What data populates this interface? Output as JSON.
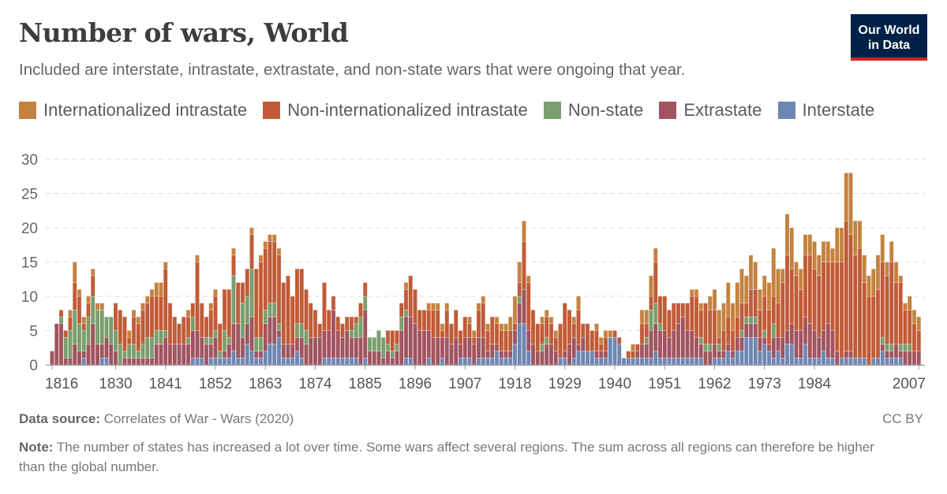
{
  "header": {
    "title": "Number of wars, World",
    "subtitle": "Included are interstate, intrastate, extrastate, and non-state wars that were ongoing that year.",
    "logo_line1": "Our World",
    "logo_line2": "in Data"
  },
  "footer": {
    "source_label": "Data source:",
    "source_text": "Correlates of War - Wars (2020)",
    "license": "CC BY",
    "note_label": "Note:",
    "note_text": "The number of states has increased a lot over time. Some wars affect several regions. The sum across all regions can therefore be higher than the global number."
  },
  "chart_data": {
    "type": "bar",
    "stacked": true,
    "title": "Number of wars, World",
    "xlabel": "",
    "ylabel": "",
    "ylim": [
      0,
      30
    ],
    "yticks": [
      "0",
      "5",
      "10",
      "15",
      "20",
      "25",
      "30"
    ],
    "xticks": [
      "1816",
      "1830",
      "1841",
      "1852",
      "1863",
      "1874",
      "1885",
      "1896",
      "1907",
      "1918",
      "1929",
      "1940",
      "1951",
      "1962",
      "1973",
      "1984",
      "2007"
    ],
    "grid": "horizontal-dashed",
    "legend_position": "top",
    "legend": [
      {
        "name": "Internationalized intrastate",
        "color": "#C4823F"
      },
      {
        "name": "Non-internationalized intrastate",
        "color": "#C15B37"
      },
      {
        "name": "Non-state",
        "color": "#7A9E6D"
      },
      {
        "name": "Extrastate",
        "color": "#A1545F"
      },
      {
        "name": "Interstate",
        "color": "#6D87B3"
      }
    ],
    "stack_order": [
      "Interstate",
      "Extrastate",
      "Non-state",
      "Non-internationalized intrastate",
      "Internationalized intrastate"
    ],
    "stack_colors": [
      "#6D87B3",
      "#A1545F",
      "#7A9E6D",
      "#C15B37",
      "#C4823F"
    ],
    "first_year": 1816,
    "last_year": 2007,
    "rows": [
      [
        0,
        2,
        0,
        0,
        0
      ],
      [
        0,
        6,
        0,
        0,
        0
      ],
      [
        0,
        6,
        1,
        1,
        0
      ],
      [
        0,
        1,
        3,
        1,
        0
      ],
      [
        0,
        1,
        4,
        2,
        1
      ],
      [
        0,
        3,
        5,
        4,
        3
      ],
      [
        0,
        2,
        4,
        4,
        1
      ],
      [
        1,
        1,
        3,
        1,
        1
      ],
      [
        0,
        3,
        4,
        2,
        1
      ],
      [
        0,
        6,
        4,
        3,
        1
      ],
      [
        0,
        3,
        5,
        0,
        1
      ],
      [
        1,
        2,
        5,
        0,
        1
      ],
      [
        1,
        3,
        3,
        0,
        0
      ],
      [
        0,
        3,
        4,
        0,
        0
      ],
      [
        0,
        2,
        3,
        4,
        0
      ],
      [
        0,
        0,
        3,
        5,
        0
      ],
      [
        0,
        1,
        1,
        5,
        0
      ],
      [
        0,
        1,
        2,
        1,
        1
      ],
      [
        0,
        1,
        2,
        4,
        1
      ],
      [
        0,
        1,
        1,
        4,
        1
      ],
      [
        0,
        1,
        2,
        5,
        1
      ],
      [
        0,
        1,
        3,
        5,
        1
      ],
      [
        0,
        1,
        3,
        6,
        1
      ],
      [
        0,
        3,
        2,
        5,
        2
      ],
      [
        0,
        3,
        2,
        5,
        2
      ],
      [
        0,
        4,
        1,
        9,
        1
      ],
      [
        0,
        3,
        0,
        6,
        0
      ],
      [
        0,
        3,
        0,
        4,
        0
      ],
      [
        0,
        3,
        0,
        3,
        0
      ],
      [
        0,
        3,
        0,
        4,
        0
      ],
      [
        0,
        3,
        1,
        3,
        1
      ],
      [
        1,
        4,
        2,
        2,
        0
      ],
      [
        1,
        4,
        0,
        10,
        1
      ],
      [
        1,
        3,
        0,
        5,
        0
      ],
      [
        0,
        3,
        1,
        3,
        0
      ],
      [
        1,
        2,
        1,
        4,
        1
      ],
      [
        1,
        3,
        1,
        5,
        1
      ],
      [
        1,
        0,
        1,
        4,
        0
      ],
      [
        1,
        1,
        3,
        6,
        0
      ],
      [
        1,
        2,
        1,
        7,
        0
      ],
      [
        2,
        4,
        7,
        3,
        1
      ],
      [
        1,
        5,
        0,
        6,
        0
      ],
      [
        1,
        3,
        5,
        3,
        0
      ],
      [
        3,
        3,
        4,
        4,
        0
      ],
      [
        2,
        5,
        7,
        5,
        1
      ],
      [
        1,
        1,
        2,
        10,
        0
      ],
      [
        1,
        1,
        2,
        11,
        1
      ],
      [
        2,
        4,
        2,
        9,
        1
      ],
      [
        3,
        4,
        2,
        9,
        1
      ],
      [
        3,
        4,
        2,
        9,
        1
      ],
      [
        4,
        1,
        1,
        10,
        1
      ],
      [
        1,
        2,
        0,
        9,
        0
      ],
      [
        1,
        2,
        0,
        10,
        0
      ],
      [
        1,
        2,
        0,
        7,
        0
      ],
      [
        2,
        2,
        2,
        8,
        0
      ],
      [
        1,
        3,
        2,
        8,
        0
      ],
      [
        0,
        3,
        2,
        6,
        0
      ],
      [
        0,
        4,
        0,
        5,
        0
      ],
      [
        0,
        4,
        0,
        4,
        0
      ],
      [
        0,
        4,
        0,
        2,
        0
      ],
      [
        1,
        4,
        0,
        7,
        0
      ],
      [
        1,
        4,
        0,
        3,
        0
      ],
      [
        1,
        7,
        0,
        2,
        0
      ],
      [
        1,
        4,
        0,
        2,
        0
      ],
      [
        1,
        3,
        0,
        2,
        0
      ],
      [
        1,
        4,
        0,
        2,
        0
      ],
      [
        1,
        3,
        1,
        2,
        0
      ],
      [
        1,
        3,
        2,
        1,
        0
      ],
      [
        0,
        4,
        3,
        2,
        0
      ],
      [
        1,
        7,
        2,
        2,
        0
      ],
      [
        0,
        2,
        2,
        0,
        0
      ],
      [
        0,
        2,
        2,
        0,
        0
      ],
      [
        0,
        2,
        3,
        0,
        0
      ],
      [
        0,
        1,
        3,
        0,
        0
      ],
      [
        0,
        2,
        1,
        2,
        0
      ],
      [
        0,
        1,
        1,
        3,
        0
      ],
      [
        0,
        2,
        1,
        2,
        0
      ],
      [
        0,
        5,
        2,
        2,
        0
      ],
      [
        1,
        6,
        1,
        3,
        1
      ],
      [
        1,
        6,
        0,
        6,
        0
      ],
      [
        0,
        6,
        0,
        5,
        0
      ],
      [
        0,
        5,
        0,
        3,
        0
      ],
      [
        0,
        5,
        0,
        3,
        0
      ],
      [
        1,
        4,
        0,
        3,
        1
      ],
      [
        0,
        4,
        0,
        4,
        1
      ],
      [
        0,
        4,
        0,
        4,
        1
      ],
      [
        1,
        3,
        0,
        1,
        1
      ],
      [
        0,
        4,
        0,
        4,
        1
      ],
      [
        0,
        3,
        0,
        3,
        0
      ],
      [
        0,
        4,
        0,
        4,
        0
      ],
      [
        1,
        2,
        0,
        2,
        0
      ],
      [
        1,
        3,
        0,
        3,
        0
      ],
      [
        1,
        3,
        0,
        2,
        1
      ],
      [
        0,
        3,
        0,
        1,
        1
      ],
      [
        1,
        3,
        0,
        4,
        1
      ],
      [
        1,
        3,
        0,
        5,
        1
      ],
      [
        1,
        1,
        0,
        3,
        1
      ],
      [
        1,
        2,
        0,
        4,
        0
      ],
      [
        2,
        1,
        0,
        3,
        1
      ],
      [
        1,
        1,
        0,
        3,
        1
      ],
      [
        1,
        1,
        0,
        3,
        1
      ],
      [
        1,
        1,
        0,
        3,
        2
      ],
      [
        3,
        2,
        0,
        1,
        4
      ],
      [
        6,
        3,
        1,
        2,
        3
      ],
      [
        6,
        5,
        0,
        7,
        3
      ],
      [
        2,
        3,
        0,
        7,
        1
      ],
      [
        0,
        3,
        0,
        5,
        0
      ],
      [
        0,
        2,
        0,
        4,
        0
      ],
      [
        0,
        2,
        1,
        3,
        1
      ],
      [
        0,
        3,
        1,
        3,
        1
      ],
      [
        0,
        3,
        0,
        3,
        1
      ],
      [
        0,
        2,
        0,
        2,
        1
      ],
      [
        1,
        0,
        0,
        5,
        0
      ],
      [
        1,
        1,
        0,
        7,
        0
      ],
      [
        0,
        3,
        0,
        5,
        0
      ],
      [
        1,
        3,
        0,
        2,
        1
      ],
      [
        2,
        1,
        0,
        5,
        2
      ],
      [
        2,
        2,
        0,
        2,
        0
      ],
      [
        2,
        0,
        0,
        4,
        0
      ],
      [
        2,
        0,
        0,
        3,
        0
      ],
      [
        1,
        1,
        0,
        3,
        1
      ],
      [
        1,
        1,
        0,
        1,
        1
      ],
      [
        1,
        1,
        0,
        2,
        1
      ],
      [
        4,
        0,
        0,
        0,
        1
      ],
      [
        4,
        0,
        0,
        1,
        0
      ],
      [
        3,
        0,
        0,
        1,
        0
      ],
      [
        1,
        0,
        0,
        0,
        0
      ],
      [
        1,
        0,
        0,
        1,
        0
      ],
      [
        1,
        0,
        0,
        1,
        1
      ],
      [
        1,
        1,
        0,
        1,
        0
      ],
      [
        1,
        2,
        0,
        3,
        2
      ],
      [
        1,
        2,
        1,
        2,
        2
      ],
      [
        1,
        4,
        3,
        2,
        3
      ],
      [
        2,
        4,
        3,
        6,
        2
      ],
      [
        1,
        4,
        1,
        4,
        0
      ],
      [
        1,
        4,
        0,
        5,
        0
      ],
      [
        1,
        3,
        0,
        4,
        0
      ],
      [
        1,
        4,
        0,
        4,
        0
      ],
      [
        1,
        5,
        0,
        3,
        0
      ],
      [
        1,
        6,
        0,
        2,
        0
      ],
      [
        1,
        4,
        0,
        4,
        0
      ],
      [
        1,
        4,
        0,
        5,
        1
      ],
      [
        1,
        3,
        0,
        6,
        1
      ],
      [
        1,
        2,
        1,
        4,
        1
      ],
      [
        0,
        2,
        1,
        6,
        0
      ],
      [
        0,
        2,
        1,
        5,
        2
      ],
      [
        1,
        2,
        0,
        5,
        3
      ],
      [
        1,
        1,
        1,
        1,
        4
      ],
      [
        1,
        1,
        0,
        3,
        4
      ],
      [
        2,
        1,
        0,
        4,
        5
      ],
      [
        1,
        1,
        0,
        3,
        4
      ],
      [
        2,
        2,
        0,
        3,
        5
      ],
      [
        2,
        2,
        1,
        4,
        5
      ],
      [
        4,
        2,
        1,
        2,
        4
      ],
      [
        4,
        2,
        1,
        4,
        5
      ],
      [
        4,
        2,
        1,
        4,
        4
      ],
      [
        2,
        2,
        0,
        4,
        3
      ],
      [
        3,
        1,
        1,
        5,
        3
      ],
      [
        2,
        1,
        0,
        5,
        4
      ],
      [
        1,
        3,
        2,
        4,
        7
      ],
      [
        2,
        2,
        0,
        5,
        5
      ],
      [
        1,
        3,
        0,
        8,
        2
      ],
      [
        3,
        2,
        0,
        11,
        6
      ],
      [
        3,
        3,
        0,
        8,
        6
      ],
      [
        1,
        4,
        0,
        8,
        2
      ],
      [
        1,
        4,
        0,
        6,
        3
      ],
      [
        3,
        4,
        0,
        9,
        3
      ],
      [
        1,
        5,
        0,
        10,
        3
      ],
      [
        1,
        4,
        0,
        9,
        4
      ],
      [
        1,
        3,
        0,
        9,
        3
      ],
      [
        2,
        3,
        0,
        10,
        3
      ],
      [
        1,
        5,
        0,
        9,
        3
      ],
      [
        1,
        4,
        0,
        10,
        2
      ],
      [
        0,
        2,
        0,
        13,
        5
      ],
      [
        1,
        0,
        0,
        14,
        5
      ],
      [
        1,
        1,
        0,
        19,
        7
      ],
      [
        1,
        1,
        0,
        17,
        9
      ],
      [
        1,
        0,
        0,
        15,
        5
      ],
      [
        1,
        0,
        0,
        16,
        4
      ],
      [
        1,
        0,
        0,
        11,
        4
      ],
      [
        0,
        0,
        0,
        10,
        3
      ],
      [
        1,
        0,
        0,
        9,
        4
      ],
      [
        1,
        0,
        0,
        10,
        5
      ],
      [
        2,
        1,
        1,
        11,
        4
      ],
      [
        1,
        1,
        1,
        10,
        2
      ],
      [
        1,
        1,
        1,
        12,
        3
      ],
      [
        1,
        2,
        0,
        9,
        3
      ],
      [
        1,
        1,
        1,
        9,
        1
      ],
      [
        0,
        2,
        1,
        5,
        1
      ],
      [
        0,
        2,
        1,
        5,
        2
      ],
      [
        0,
        2,
        0,
        4,
        2
      ],
      [
        0,
        2,
        0,
        3,
        2
      ]
    ]
  }
}
